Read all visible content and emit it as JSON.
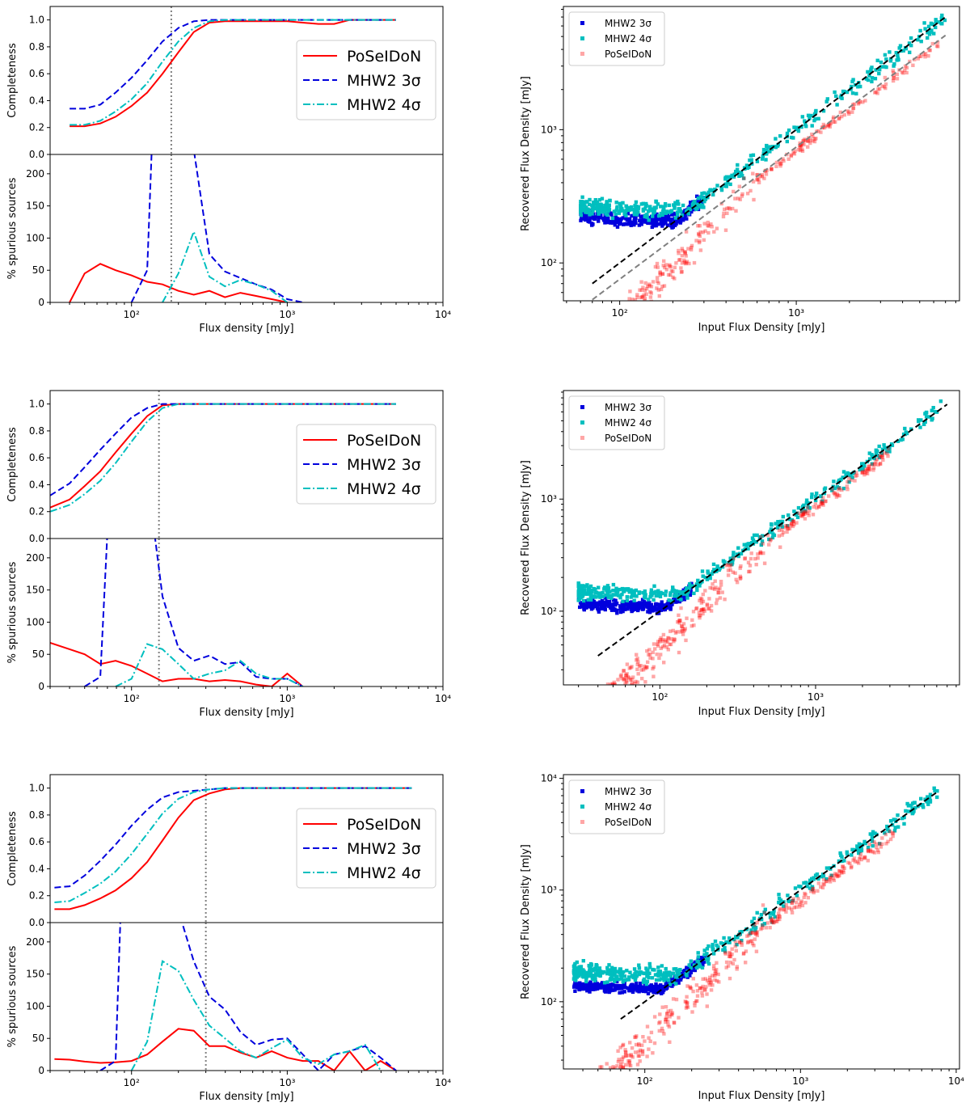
{
  "figure": {
    "panel_labels": {}
  },
  "colors": {
    "poseidon": "#ff0000",
    "mhw3": "#0000dd",
    "mhw4": "#00bfbf",
    "threshold": "#808080",
    "axes": "#000000"
  },
  "chart_data": [
    {
      "id": "row1-completeness",
      "type": "line",
      "ylabel": "Completeness",
      "xlabel": "",
      "xscale": "log",
      "xlim": [
        30,
        10000
      ],
      "ylim": [
        0,
        1.1
      ],
      "yticks": [
        "0.0",
        "0.2",
        "0.4",
        "0.6",
        "0.8",
        "1.0"
      ],
      "threshold_x": 180,
      "legend": {
        "position": "center-right",
        "entries": [
          "PoSeIDoN",
          "MHW2 3σ",
          "MHW2 4σ"
        ]
      },
      "series": [
        {
          "name": "PoSeIDoN",
          "style": "solid",
          "x": [
            40,
            50,
            63,
            79,
            100,
            126,
            158,
            200,
            251,
            316,
            398,
            500,
            631,
            794,
            1000,
            1259,
            1585,
            2000,
            2512,
            3162,
            3981,
            5000
          ],
          "y": [
            0.21,
            0.21,
            0.23,
            0.28,
            0.36,
            0.46,
            0.6,
            0.76,
            0.91,
            0.98,
            0.99,
            0.99,
            0.99,
            0.99,
            0.99,
            0.98,
            0.97,
            0.97,
            1.0,
            1.0,
            1.0,
            1.0
          ]
        },
        {
          "name": "MHW2 3σ",
          "style": "dashed",
          "x": [
            40,
            50,
            63,
            79,
            100,
            126,
            158,
            200,
            251,
            316,
            398,
            500,
            631,
            794,
            1000,
            1259,
            1585,
            2000,
            2512,
            3162,
            3981,
            5000
          ],
          "y": [
            0.34,
            0.34,
            0.37,
            0.46,
            0.57,
            0.7,
            0.84,
            0.94,
            0.99,
            1.0,
            1.0,
            1.0,
            1.0,
            1.0,
            1.0,
            1.0,
            1.0,
            1.0,
            1.0,
            1.0,
            1.0,
            1.0
          ]
        },
        {
          "name": "MHW2 4σ",
          "style": "dashdot",
          "x": [
            40,
            50,
            63,
            79,
            100,
            126,
            158,
            200,
            251,
            316,
            398,
            500,
            631,
            794,
            1000,
            1259,
            1585,
            2000,
            2512,
            3162,
            3981,
            5000
          ],
          "y": [
            0.22,
            0.22,
            0.25,
            0.32,
            0.41,
            0.53,
            0.69,
            0.84,
            0.94,
            0.99,
            1.0,
            1.0,
            1.0,
            1.0,
            1.0,
            1.0,
            1.0,
            1.0,
            1.0,
            1.0,
            1.0,
            1.0
          ]
        }
      ]
    },
    {
      "id": "row1-spurious",
      "type": "line",
      "ylabel": "% spurious sources",
      "xlabel": "Flux density [mJy]",
      "xscale": "log",
      "xlim": [
        30,
        10000
      ],
      "ylim": [
        0,
        230
      ],
      "yticks": [
        "0",
        "50",
        "100",
        "150",
        "200"
      ],
      "xticks": [
        "10²",
        "10³",
        "10⁴"
      ],
      "threshold_x": 180,
      "series": [
        {
          "name": "PoSeIDoN",
          "style": "solid",
          "x": [
            40,
            50,
            63,
            79,
            100,
            126,
            158,
            200,
            251,
            316,
            398,
            500,
            631,
            794,
            1000
          ],
          "y": [
            0,
            45,
            60,
            50,
            42,
            32,
            28,
            18,
            12,
            18,
            8,
            15,
            10,
            5,
            0
          ]
        },
        {
          "name": "MHW2 3σ",
          "style": "dashed",
          "x": [
            100,
            126,
            135,
            250,
            316,
            398,
            500,
            631,
            794,
            1000,
            1259
          ],
          "y": [
            0,
            50,
            240,
            240,
            75,
            48,
            38,
            28,
            20,
            5,
            0
          ]
        },
        {
          "name": "MHW2 4σ",
          "style": "dashdot",
          "x": [
            158,
            200,
            251,
            316,
            398,
            500,
            631,
            794,
            1000
          ],
          "y": [
            0,
            45,
            110,
            40,
            25,
            35,
            28,
            18,
            0
          ]
        }
      ]
    },
    {
      "id": "row1-flux",
      "type": "scatter",
      "xlabel": "Input Flux Density [mJy]",
      "ylabel": "Recovered Flux Density [mJy]",
      "xscale": "log",
      "yscale": "log",
      "xlim": [
        48,
        8400
      ],
      "ylim": [
        52,
        8400
      ],
      "xticks": [
        "10²",
        "10³"
      ],
      "yticks": [
        "10²",
        "10³"
      ],
      "legend": {
        "position": "top-left",
        "entries": [
          "MHW2 3σ",
          "MHW2 4σ",
          "PoSeIDoN"
        ]
      },
      "clouds": [
        {
          "name": "MHW2 3σ",
          "x_range": [
            60,
            300
          ],
          "floor": 190,
          "spread": 0.06,
          "points": 300
        },
        {
          "name": "MHW2 4σ",
          "x_range": [
            60,
            7000
          ],
          "floor": 230,
          "spread": 0.08,
          "points": 420
        },
        {
          "name": "PoSeIDoN",
          "x_range": [
            90,
            6500
          ],
          "ratio": 0.7,
          "spread": 0.15,
          "points": 360
        }
      ],
      "lines": [
        {
          "name": "one-to-one",
          "color": "#000000",
          "x": [
            70,
            7000
          ],
          "y": [
            70,
            7000
          ]
        },
        {
          "name": "reference",
          "color": "#808080",
          "x": [
            70,
            7000
          ],
          "y": [
            53,
            5100
          ]
        }
      ]
    },
    {
      "id": "row2-completeness",
      "type": "line",
      "ylabel": "Completeness",
      "xlabel": "",
      "xscale": "log",
      "xlim": [
        30,
        10000
      ],
      "ylim": [
        0,
        1.1
      ],
      "yticks": [
        "0.0",
        "0.2",
        "0.4",
        "0.6",
        "0.8",
        "1.0"
      ],
      "threshold_x": 150,
      "legend": {
        "position": "center-right",
        "entries": [
          "PoSeIDoN",
          "MHW2 3σ",
          "MHW2 4σ"
        ]
      },
      "series": [
        {
          "name": "PoSeIDoN",
          "style": "solid",
          "x": [
            30,
            40,
            50,
            63,
            79,
            100,
            126,
            158,
            200,
            251,
            316,
            1000,
            5000
          ],
          "y": [
            0.23,
            0.29,
            0.39,
            0.5,
            0.64,
            0.78,
            0.91,
            0.99,
            1.0,
            1.0,
            1.0,
            1.0,
            1.0
          ]
        },
        {
          "name": "MHW2 3σ",
          "style": "dashed",
          "x": [
            30,
            40,
            50,
            63,
            79,
            100,
            126,
            158,
            200,
            251,
            316,
            1000,
            5000
          ],
          "y": [
            0.32,
            0.41,
            0.53,
            0.66,
            0.78,
            0.9,
            0.97,
            1.0,
            1.0,
            1.0,
            1.0,
            1.0,
            1.0
          ]
        },
        {
          "name": "MHW2 4σ",
          "style": "dashdot",
          "x": [
            30,
            40,
            50,
            63,
            79,
            100,
            126,
            158,
            200,
            251,
            316,
            1000,
            5000
          ],
          "y": [
            0.2,
            0.25,
            0.33,
            0.43,
            0.56,
            0.72,
            0.87,
            0.97,
            1.0,
            1.0,
            1.0,
            1.0,
            1.0
          ]
        }
      ]
    },
    {
      "id": "row2-spurious",
      "type": "line",
      "ylabel": "% spurious sources",
      "xlabel": "Flux density [mJy]",
      "xscale": "log",
      "xlim": [
        30,
        10000
      ],
      "ylim": [
        0,
        230
      ],
      "yticks": [
        "0",
        "50",
        "100",
        "150",
        "200"
      ],
      "xticks": [
        "10²",
        "10³",
        "10⁴"
      ],
      "threshold_x": 150,
      "series": [
        {
          "name": "PoSeIDoN",
          "style": "solid",
          "x": [
            30,
            40,
            50,
            63,
            79,
            100,
            126,
            158,
            200,
            251,
            316,
            398,
            500,
            631,
            794,
            1000,
            1259
          ],
          "y": [
            68,
            58,
            50,
            35,
            40,
            32,
            20,
            8,
            12,
            12,
            8,
            10,
            8,
            3,
            0,
            20,
            0
          ]
        },
        {
          "name": "MHW2 3σ",
          "style": "dashed",
          "x": [
            50,
            63,
            70,
            140,
            158,
            200,
            251,
            316,
            398,
            500,
            631,
            794,
            1000,
            1259
          ],
          "y": [
            0,
            15,
            240,
            240,
            140,
            60,
            40,
            48,
            35,
            38,
            15,
            12,
            12,
            0
          ]
        },
        {
          "name": "MHW2 4σ",
          "style": "dashdot",
          "x": [
            79,
            100,
            126,
            158,
            200,
            251,
            316,
            398,
            500,
            631,
            794,
            1000,
            1259
          ],
          "y": [
            0,
            12,
            66,
            58,
            35,
            12,
            20,
            25,
            40,
            20,
            12,
            12,
            0
          ]
        }
      ]
    },
    {
      "id": "row2-flux",
      "type": "scatter",
      "xlabel": "Input Flux Density [mJy]",
      "ylabel": "Recovered Flux Density [mJy]",
      "xscale": "log",
      "yscale": "log",
      "xlim": [
        24,
        8400
      ],
      "ylim": [
        22,
        9300
      ],
      "xticks": [
        "10²",
        "10³"
      ],
      "yticks": [
        "10²",
        "10³"
      ],
      "legend": {
        "position": "top-left",
        "entries": [
          "MHW2 3σ",
          "MHW2 4σ",
          "PoSeIDoN"
        ]
      },
      "clouds": [
        {
          "name": "MHW2 3σ",
          "x_range": [
            30,
            160
          ],
          "floor": 100,
          "spread": 0.06,
          "points": 320
        },
        {
          "name": "MHW2 4σ",
          "x_range": [
            30,
            6500
          ],
          "floor": 130,
          "spread": 0.08,
          "points": 420
        },
        {
          "name": "PoSeIDoN",
          "x_range": [
            40,
            3000
          ],
          "ratio": 0.85,
          "spread": 0.18,
          "points": 420
        }
      ],
      "lines": [
        {
          "name": "one-to-one",
          "color": "#000000",
          "x": [
            40,
            7000
          ],
          "y": [
            40,
            7000
          ]
        }
      ]
    },
    {
      "id": "row3-completeness",
      "type": "line",
      "ylabel": "Completeness",
      "xlabel": "",
      "xscale": "log",
      "xlim": [
        30,
        10000
      ],
      "ylim": [
        0,
        1.1
      ],
      "yticks": [
        "0.0",
        "0.2",
        "0.4",
        "0.6",
        "0.8",
        "1.0"
      ],
      "threshold_x": 300,
      "legend": {
        "position": "center-right",
        "entries": [
          "PoSeIDoN",
          "MHW2 3σ",
          "MHW2 4σ"
        ]
      },
      "series": [
        {
          "name": "PoSeIDoN",
          "style": "solid",
          "x": [
            32,
            40,
            50,
            63,
            79,
            100,
            126,
            158,
            200,
            251,
            316,
            398,
            500,
            1000,
            6300
          ],
          "y": [
            0.1,
            0.1,
            0.13,
            0.18,
            0.24,
            0.33,
            0.45,
            0.61,
            0.78,
            0.91,
            0.96,
            0.99,
            1.0,
            1.0,
            1.0
          ]
        },
        {
          "name": "MHW2 3σ",
          "style": "dashed",
          "x": [
            32,
            40,
            50,
            63,
            79,
            100,
            126,
            158,
            200,
            251,
            316,
            398,
            500,
            1000,
            6300
          ],
          "y": [
            0.26,
            0.27,
            0.35,
            0.46,
            0.58,
            0.72,
            0.84,
            0.93,
            0.97,
            0.98,
            0.99,
            1.0,
            1.0,
            1.0,
            1.0
          ]
        },
        {
          "name": "MHW2 4σ",
          "style": "dashdot",
          "x": [
            32,
            40,
            50,
            63,
            79,
            100,
            126,
            158,
            200,
            251,
            316,
            398,
            500,
            1000,
            6300
          ],
          "y": [
            0.15,
            0.16,
            0.22,
            0.29,
            0.38,
            0.51,
            0.66,
            0.81,
            0.92,
            0.97,
            0.99,
            1.0,
            1.0,
            1.0,
            1.0
          ]
        }
      ]
    },
    {
      "id": "row3-spurious",
      "type": "line",
      "ylabel": "% spurious sources",
      "xlabel": "Flux density [mJy]",
      "xscale": "log",
      "xlim": [
        30,
        10000
      ],
      "ylim": [
        0,
        230
      ],
      "yticks": [
        "0",
        "50",
        "100",
        "150",
        "200"
      ],
      "xticks": [
        "10²",
        "10³",
        "10⁴"
      ],
      "threshold_x": 300,
      "series": [
        {
          "name": "PoSeIDoN",
          "style": "solid",
          "x": [
            32,
            40,
            50,
            63,
            79,
            100,
            126,
            158,
            200,
            251,
            316,
            398,
            500,
            631,
            794,
            1000,
            1259,
            1585,
            2000,
            2512,
            3162,
            3981,
            5000
          ],
          "y": [
            18,
            17,
            14,
            12,
            13,
            15,
            25,
            45,
            65,
            62,
            38,
            38,
            28,
            20,
            30,
            20,
            15,
            15,
            0,
            30,
            0,
            15,
            0
          ]
        },
        {
          "name": "MHW2 3σ",
          "style": "dashed",
          "x": [
            63,
            79,
            85,
            205,
            251,
            316,
            398,
            500,
            631,
            794,
            1000,
            1259,
            1585,
            2000,
            2512,
            3162,
            3981,
            5000
          ],
          "y": [
            0,
            15,
            240,
            240,
            170,
            115,
            95,
            60,
            40,
            48,
            50,
            25,
            0,
            25,
            30,
            38,
            20,
            0
          ]
        },
        {
          "name": "MHW2 4σ",
          "style": "dashdot",
          "x": [
            100,
            126,
            158,
            200,
            251,
            316,
            398,
            500,
            631,
            794,
            1000,
            1259,
            1585,
            2000,
            2512,
            3162,
            3981
          ],
          "y": [
            0,
            45,
            170,
            155,
            110,
            70,
            50,
            30,
            20,
            35,
            48,
            20,
            10,
            25,
            30,
            40,
            0
          ]
        }
      ]
    },
    {
      "id": "row3-flux",
      "type": "scatter",
      "xlabel": "Input Flux Density [mJy]",
      "ylabel": "Recovered Flux Density [mJy]",
      "xscale": "log",
      "yscale": "log",
      "xlim": [
        30,
        10500
      ],
      "ylim": [
        25,
        10800
      ],
      "xticks": [
        "10²",
        "10³",
        "10⁴"
      ],
      "yticks": [
        "10²",
        "10³",
        "10⁴"
      ],
      "legend": {
        "position": "top-left",
        "entries": [
          "MHW2 3σ",
          "MHW2 4σ",
          "PoSeIDoN"
        ]
      },
      "clouds": [
        {
          "name": "MHW2 3σ",
          "x_range": [
            35,
            250
          ],
          "floor": 120,
          "spread": 0.05,
          "points": 360
        },
        {
          "name": "MHW2 4σ",
          "x_range": [
            35,
            8000
          ],
          "floor": 160,
          "spread": 0.1,
          "points": 460
        },
        {
          "name": "PoSeIDoN",
          "x_range": [
            40,
            4000
          ],
          "ratio": 0.8,
          "spread": 0.2,
          "points": 480
        }
      ],
      "lines": [
        {
          "name": "one-to-one",
          "color": "#000000",
          "x": [
            70,
            7500
          ],
          "y": [
            70,
            7500
          ]
        }
      ]
    }
  ]
}
